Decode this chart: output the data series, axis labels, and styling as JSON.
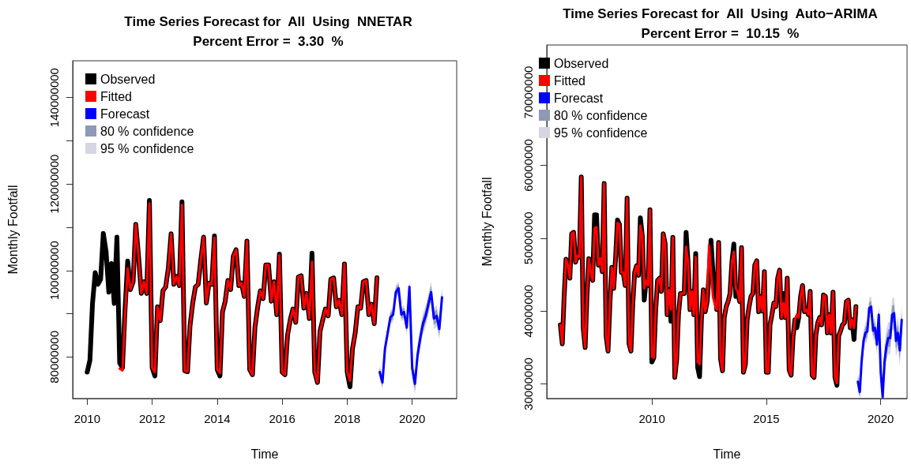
{
  "chart_data": [
    {
      "type": "line",
      "title": "Time Series Forecast for  All  Using  NNETAR",
      "subtitle": "Percent Error =  3.30  %",
      "xlabel": "Time",
      "ylabel": "Monthly Footfall",
      "x": [
        "2010-01",
        "2010-02",
        "2010-03",
        "2010-04",
        "2010-05",
        "2010-06",
        "2010-07",
        "2010-08",
        "2010-09",
        "2010-10",
        "2010-11",
        "2010-12",
        "2011-01",
        "2011-02",
        "2011-03",
        "2011-04",
        "2011-05",
        "2011-06",
        "2011-07",
        "2011-08",
        "2011-09",
        "2011-10",
        "2011-11",
        "2011-12",
        "2012-01",
        "2012-02",
        "2012-03",
        "2012-04",
        "2012-05",
        "2012-06",
        "2012-07",
        "2012-08",
        "2012-09",
        "2012-10",
        "2012-11",
        "2012-12",
        "2013-01",
        "2013-02",
        "2013-03",
        "2013-04",
        "2013-05",
        "2013-06",
        "2013-07",
        "2013-08",
        "2013-09",
        "2013-10",
        "2013-11",
        "2013-12",
        "2014-01",
        "2014-02",
        "2014-03",
        "2014-04",
        "2014-05",
        "2014-06",
        "2014-07",
        "2014-08",
        "2014-09",
        "2014-10",
        "2014-11",
        "2014-12",
        "2015-01",
        "2015-02",
        "2015-03",
        "2015-04",
        "2015-05",
        "2015-06",
        "2015-07",
        "2015-08",
        "2015-09",
        "2015-10",
        "2015-11",
        "2015-12",
        "2016-01",
        "2016-02",
        "2016-03",
        "2016-04",
        "2016-05",
        "2016-06",
        "2016-07",
        "2016-08",
        "2016-09",
        "2016-10",
        "2016-11",
        "2016-12",
        "2017-01",
        "2017-02",
        "2017-03",
        "2017-04",
        "2017-05",
        "2017-06",
        "2017-07",
        "2017-08",
        "2017-09",
        "2017-10",
        "2017-11",
        "2017-12",
        "2018-01",
        "2018-02",
        "2018-03",
        "2018-04",
        "2018-05",
        "2018-06",
        "2018-07",
        "2018-08",
        "2018-09",
        "2018-10",
        "2018-11",
        "2018-12"
      ],
      "series": [
        {
          "name": "Observed",
          "color": "#000000",
          "values": [
            76500000.0,
            79300000.0,
            92200000.0,
            99500000.0,
            96800000.0,
            98000000.0,
            108600000.0,
            104400000.0,
            95000000.0,
            101600000.0,
            92400000.0,
            107700000.0,
            78600000.0,
            77500000.0,
            90400000.0,
            102200000.0,
            95600000.0,
            97400000.0,
            110700000.0,
            103300000.0,
            94700000.0,
            97400000.0,
            94700000.0,
            116200000.0,
            77500000.0,
            75600000.0,
            91600000.0,
            88400000.0,
            95300000.0,
            96200000.0,
            100600000.0,
            108500000.0,
            96800000.0,
            98600000.0,
            96500000.0,
            115900000.0,
            76800000.0,
            76600000.0,
            87100000.0,
            92500000.0,
            96200000.0,
            96800000.0,
            102500000.0,
            107700000.0,
            92500000.0,
            97100000.0,
            96800000.0,
            108000000.0,
            77100000.0,
            75600000.0,
            90400000.0,
            92900000.0,
            97700000.0,
            95600000.0,
            103300000.0,
            104800000.0,
            96500000.0,
            97100000.0,
            94000000.0,
            106800000.0,
            77100000.0,
            75900000.0,
            86800000.0,
            91600000.0,
            95300000.0,
            93500000.0,
            101300000.0,
            101300000.0,
            92900000.0,
            97400000.0,
            89800000.0,
            103800000.0,
            76500000.0,
            75900000.0,
            85000000.0,
            88600000.0,
            91100000.0,
            88000000.0,
            98500000.0,
            98800000.0,
            91300000.0,
            94700000.0,
            88900000.0,
            104000000.0,
            76500000.0,
            74100000.0,
            85900000.0,
            88600000.0,
            91100000.0,
            89500000.0,
            98000000.0,
            98300000.0,
            91600000.0,
            93100000.0,
            89800000.0,
            101500000.0,
            76500000.0,
            73100000.0,
            81900000.0,
            85600000.0,
            91600000.0,
            91300000.0,
            97400000.0,
            97700000.0,
            89800000.0,
            92200000.0,
            87700000.0,
            98300000.0
          ]
        },
        {
          "name": "Fitted",
          "color": "#ff0000",
          "values": [
            null,
            null,
            null,
            null,
            null,
            null,
            null,
            null,
            null,
            null,
            null,
            null,
            77300000.0,
            76900000.0,
            89000000.0,
            100500000.0,
            95600000.0,
            97400000.0,
            110700000.0,
            103300000.0,
            94700000.0,
            97400000.0,
            94700000.0,
            115500000.0,
            77500000.0,
            76500000.0,
            91600000.0,
            88400000.0,
            95300000.0,
            96200000.0,
            100600000.0,
            108500000.0,
            96800000.0,
            98600000.0,
            96500000.0,
            115200000.0,
            76800000.0,
            76600000.0,
            87100000.0,
            92500000.0,
            96200000.0,
            96800000.0,
            102500000.0,
            107700000.0,
            92500000.0,
            97100000.0,
            96800000.0,
            107600000.0,
            77100000.0,
            76300000.0,
            90400000.0,
            92900000.0,
            97700000.0,
            95600000.0,
            103300000.0,
            104800000.0,
            96500000.0,
            97100000.0,
            94000000.0,
            106800000.0,
            77100000.0,
            75900000.0,
            86800000.0,
            91600000.0,
            95300000.0,
            93500000.0,
            101300000.0,
            101300000.0,
            92900000.0,
            97400000.0,
            89800000.0,
            103500000.0,
            76500000.0,
            75900000.0,
            85000000.0,
            88600000.0,
            91100000.0,
            88000000.0,
            98500000.0,
            98800000.0,
            91300000.0,
            94700000.0,
            88900000.0,
            102000000.0,
            76500000.0,
            74100000.0,
            85900000.0,
            88600000.0,
            91100000.0,
            89500000.0,
            98000000.0,
            98300000.0,
            91600000.0,
            93100000.0,
            89800000.0,
            101500000.0,
            76500000.0,
            74500000.0,
            81900000.0,
            85600000.0,
            91600000.0,
            91300000.0,
            97400000.0,
            97700000.0,
            89800000.0,
            92200000.0,
            87700000.0,
            98300000.0
          ]
        },
        {
          "name": "Forecast",
          "color": "#0000ff",
          "x": [
            "2019-01",
            "2019-02",
            "2019-03",
            "2019-04",
            "2019-05",
            "2019-06",
            "2019-07",
            "2019-08",
            "2019-09",
            "2019-10",
            "2019-11",
            "2019-12",
            "2020-01",
            "2020-02",
            "2020-03",
            "2020-04",
            "2020-05",
            "2020-06",
            "2020-07",
            "2020-08",
            "2020-09",
            "2020-10",
            "2020-11",
            "2020-12"
          ],
          "values": [
            76500000.0,
            74100000.0,
            81900000.0,
            85600000.0,
            89200000.0,
            89800000.0,
            95000000.0,
            95900000.0,
            89800000.0,
            90400000.0,
            86800000.0,
            96200000.0,
            77400000.0,
            73800000.0,
            80400000.0,
            84400000.0,
            87700000.0,
            89500000.0,
            92200000.0,
            95000000.0,
            88900000.0,
            89500000.0,
            86500000.0,
            93800000.0
          ]
        },
        {
          "name": "80 % confidence",
          "color": "#8e99b8",
          "x": [
            "2019-01",
            "2019-02",
            "2019-03",
            "2019-04",
            "2019-05",
            "2019-06",
            "2019-07",
            "2019-08",
            "2019-09",
            "2019-10",
            "2019-11",
            "2019-12",
            "2020-01",
            "2020-02",
            "2020-03",
            "2020-04",
            "2020-05",
            "2020-06",
            "2020-07",
            "2020-08",
            "2020-09",
            "2020-10",
            "2020-11",
            "2020-12"
          ],
          "values": [
            null,
            null,
            null,
            null,
            null,
            null,
            null,
            null,
            null,
            null,
            null,
            null,
            null,
            null,
            null,
            null,
            null,
            null,
            null,
            null,
            null,
            null,
            null,
            null
          ],
          "lower": [
            75500000.0,
            73100000.0,
            80900000.0,
            84600000.0,
            88200000.0,
            88800000.0,
            94000000.0,
            94900000.0,
            88800000.0,
            89400000.0,
            85800000.0,
            95200000.0,
            75900000.0,
            72300000.0,
            78900000.0,
            82900000.0,
            86200000.0,
            88000000.0,
            90700000.0,
            93500000.0,
            87400000.0,
            88000000.0,
            85000000.0,
            92300000.0
          ],
          "upper": [
            77500000.0,
            75100000.0,
            82900000.0,
            86600000.0,
            90200000.0,
            90800000.0,
            96000000.0,
            96900000.0,
            90800000.0,
            91400000.0,
            87800000.0,
            97200000.0,
            78900000.0,
            75300000.0,
            81900000.0,
            85900000.0,
            89200000.0,
            91000000.0,
            93700000.0,
            96500000.0,
            90400000.0,
            91000000.0,
            88000000.0,
            95300000.0
          ]
        },
        {
          "name": "95 % confidence",
          "color": "#d4d7e2",
          "x": [
            "2019-01",
            "2019-02",
            "2019-03",
            "2019-04",
            "2019-05",
            "2019-06",
            "2019-07",
            "2019-08",
            "2019-09",
            "2019-10",
            "2019-11",
            "2019-12",
            "2020-01",
            "2020-02",
            "2020-03",
            "2020-04",
            "2020-05",
            "2020-06",
            "2020-07",
            "2020-08",
            "2020-09",
            "2020-10",
            "2020-11",
            "2020-12"
          ],
          "values": [
            null,
            null,
            null,
            null,
            null,
            null,
            null,
            null,
            null,
            null,
            null,
            null,
            null,
            null,
            null,
            null,
            null,
            null,
            null,
            null,
            null,
            null,
            null,
            null
          ],
          "lower": [
            74900000.0,
            72500000.0,
            80300000.0,
            84000000.0,
            87600000.0,
            88200000.0,
            93400000.0,
            94300000.0,
            88200000.0,
            88800000.0,
            85200000.0,
            94600000.0,
            74900000.0,
            71300000.0,
            77900000.0,
            81900000.0,
            85200000.0,
            87000000.0,
            89700000.0,
            92500000.0,
            86400000.0,
            87000000.0,
            84000000.0,
            91300000.0
          ],
          "upper": [
            78100000.0,
            75700000.0,
            83500000.0,
            87200000.0,
            90800000.0,
            91400000.0,
            96600000.0,
            97500000.0,
            91400000.0,
            92000000.0,
            88400000.0,
            97800000.0,
            79900000.0,
            76300000.0,
            82900000.0,
            86900000.0,
            90200000.0,
            92000000.0,
            94700000.0,
            97500000.0,
            91400000.0,
            92000000.0,
            89000000.0,
            96300000.0
          ]
        }
      ],
      "xlim": [
        "2009-07-22",
        "2021-05-15"
      ],
      "xticks": [
        "2010",
        "2012",
        "2014",
        "2016",
        "2018",
        "2020"
      ],
      "ylim": [
        70400000.0,
        148500000.0
      ],
      "yticks": [
        80000000,
        {
          "value": 90000000,
          "label": null
        },
        100000000,
        {
          "value": 110000000,
          "label": null
        },
        120000000,
        {
          "value": 130000000,
          "label": null
        },
        140000000
      ],
      "grid": false,
      "legend": "top left",
      "marker": "none",
      "line_style": "solid"
    },
    {
      "type": "line",
      "title": "Time Series Forecast for  All  Using  Auto−ARIMA",
      "subtitle": "Percent Error =  10.15  %",
      "xlabel": "Time",
      "ylabel": "Monthly Footfall",
      "x": [
        "2006-01",
        "2006-02",
        "2006-03",
        "2006-04",
        "2006-05",
        "2006-06",
        "2006-07",
        "2006-08",
        "2006-09",
        "2006-10",
        "2006-11",
        "2006-12",
        "2007-01",
        "2007-02",
        "2007-03",
        "2007-04",
        "2007-05",
        "2007-06",
        "2007-07",
        "2007-08",
        "2007-09",
        "2007-10",
        "2007-11",
        "2007-12",
        "2008-01",
        "2008-02",
        "2008-03",
        "2008-04",
        "2008-05",
        "2008-06",
        "2008-07",
        "2008-08",
        "2008-09",
        "2008-10",
        "2008-11",
        "2008-12",
        "2009-01",
        "2009-02",
        "2009-03",
        "2009-04",
        "2009-05",
        "2009-06",
        "2009-07",
        "2009-08",
        "2009-09",
        "2009-10",
        "2009-11",
        "2009-12",
        "2010-01",
        "2010-02",
        "2010-03",
        "2010-04",
        "2010-05",
        "2010-06",
        "2010-07",
        "2010-08",
        "2010-09",
        "2010-10",
        "2010-11",
        "2010-12",
        "2011-01",
        "2011-02",
        "2011-03",
        "2011-04",
        "2011-05",
        "2011-06",
        "2011-07",
        "2011-08",
        "2011-09",
        "2011-10",
        "2011-11",
        "2011-12",
        "2012-01",
        "2012-02",
        "2012-03",
        "2012-04",
        "2012-05",
        "2012-06",
        "2012-07",
        "2012-08",
        "2012-09",
        "2012-10",
        "2012-11",
        "2012-12",
        "2013-01",
        "2013-02",
        "2013-03",
        "2013-04",
        "2013-05",
        "2013-06",
        "2013-07",
        "2013-08",
        "2013-09",
        "2013-10",
        "2013-11",
        "2013-12",
        "2014-01",
        "2014-02",
        "2014-03",
        "2014-04",
        "2014-05",
        "2014-06",
        "2014-07",
        "2014-08",
        "2014-09",
        "2014-10",
        "2014-11",
        "2014-12",
        "2015-01",
        "2015-02",
        "2015-03",
        "2015-04",
        "2015-05",
        "2015-06",
        "2015-07",
        "2015-08",
        "2015-09",
        "2015-10",
        "2015-11",
        "2015-12",
        "2016-01",
        "2016-02",
        "2016-03",
        "2016-04",
        "2016-05",
        "2016-06",
        "2016-07",
        "2016-08",
        "2016-09",
        "2016-10",
        "2016-11",
        "2016-12",
        "2017-01",
        "2017-02",
        "2017-03",
        "2017-04",
        "2017-05",
        "2017-06",
        "2017-07",
        "2017-08",
        "2017-09",
        "2017-10",
        "2017-11",
        "2017-12",
        "2018-01",
        "2018-02",
        "2018-03",
        "2018-04",
        "2018-05",
        "2018-06",
        "2018-07",
        "2018-08",
        "2018-09",
        "2018-10",
        "2018-11",
        "2018-12"
      ],
      "series": [
        {
          "name": "Observed",
          "color": "#000000",
          "values": [
            38100000.0,
            35500000.0,
            41700000.0,
            47100000.0,
            46300000.0,
            44500000.0,
            50600000.0,
            50800000.0,
            46700000.0,
            47600000.0,
            47400000.0,
            58400000.0,
            37700000.0,
            35000000.0,
            42000000.0,
            47200000.0,
            45300000.0,
            44200000.0,
            53200000.0,
            53200000.0,
            46300000.0,
            47200000.0,
            45400000.0,
            57500000.0,
            36600000.0,
            34500000.0,
            40900000.0,
            46000000.0,
            43100000.0,
            47400000.0,
            52500000.0,
            51900000.0,
            45300000.0,
            45300000.0,
            43500000.0,
            55500000.0,
            35500000.0,
            34500000.0,
            40900000.0,
            45300000.0,
            46200000.0,
            44900000.0,
            52800000.0,
            50300000.0,
            41500000.0,
            44200000.0,
            43500000.0,
            53900000.0,
            33000000.0,
            33600000.0,
            39900000.0,
            44200000.0,
            44500000.0,
            42700000.0,
            50600000.0,
            49200000.0,
            39500000.0,
            42900000.0,
            38600000.0,
            50100000.0,
            30900000.0,
            33400000.0,
            39500000.0,
            42400000.0,
            42400000.0,
            42400000.0,
            50800000.0,
            46700000.0,
            40200000.0,
            42700000.0,
            39500000.0,
            47900000.0,
            32300000.0,
            31000000.0,
            38800000.0,
            42900000.0,
            39900000.0,
            41300000.0,
            45000000.0,
            49700000.0,
            45300000.0,
            43800000.0,
            40200000.0,
            49400000.0,
            33400000.0,
            31800000.0,
            39100000.0,
            40600000.0,
            41300000.0,
            42400000.0,
            46700000.0,
            49200000.0,
            42000000.0,
            42700000.0,
            41300000.0,
            48700000.0,
            31600000.0,
            32700000.0,
            38800000.0,
            40600000.0,
            42000000.0,
            42400000.0,
            46300000.0,
            46900000.0,
            39900000.0,
            42000000.0,
            40000000.0,
            45400000.0,
            31600000.0,
            31600000.0,
            38100000.0,
            39500000.0,
            41100000.0,
            40600000.0,
            44500000.0,
            45600000.0,
            39100000.0,
            42400000.0,
            39100000.0,
            44500000.0,
            31900000.0,
            31200000.0,
            36300000.0,
            38800000.0,
            37700000.0,
            39100000.0,
            42000000.0,
            43500000.0,
            39900000.0,
            40200000.0,
            39500000.0,
            42700000.0,
            31200000.0,
            30900000.0,
            36600000.0,
            38400000.0,
            39100000.0,
            38100000.0,
            42200000.0,
            42000000.0,
            37000000.0,
            39500000.0,
            37000000.0,
            42600000.0,
            30900000.0,
            29800000.0,
            36600000.0,
            37300000.0,
            38100000.0,
            38400000.0,
            41300000.0,
            41500000.0,
            37700000.0,
            38800000.0,
            36100000.0,
            40600000.0
          ]
        },
        {
          "name": "Fitted",
          "color": "#ff0000",
          "values": [
            38100000.0,
            35500000.0,
            41700000.0,
            47100000.0,
            46300000.0,
            44500000.0,
            50600000.0,
            50800000.0,
            46700000.0,
            47600000.0,
            47400000.0,
            58400000.0,
            37700000.0,
            35000000.0,
            42000000.0,
            47200000.0,
            45300000.0,
            44200000.0,
            51400000.0,
            51500000.0,
            46300000.0,
            47200000.0,
            45400000.0,
            57500000.0,
            36600000.0,
            34500000.0,
            40900000.0,
            46000000.0,
            43100000.0,
            47400000.0,
            52100000.0,
            51900000.0,
            45300000.0,
            45300000.0,
            43500000.0,
            55500000.0,
            35500000.0,
            34500000.0,
            40900000.0,
            45300000.0,
            46200000.0,
            44900000.0,
            51700000.0,
            50300000.0,
            43100000.0,
            44200000.0,
            43500000.0,
            53900000.0,
            33700000.0,
            33600000.0,
            39900000.0,
            44200000.0,
            44500000.0,
            42700000.0,
            50600000.0,
            49200000.0,
            39500000.0,
            42900000.0,
            40200000.0,
            50100000.0,
            30900000.0,
            33400000.0,
            39500000.0,
            42400000.0,
            42400000.0,
            42400000.0,
            48800000.0,
            46700000.0,
            40200000.0,
            42700000.0,
            39500000.0,
            47400000.0,
            33000000.0,
            32700000.0,
            38800000.0,
            42900000.0,
            39900000.0,
            41300000.0,
            49000000.0,
            45500000.0,
            42000000.0,
            40900000.0,
            40200000.0,
            49400000.0,
            33400000.0,
            31800000.0,
            39100000.0,
            40600000.0,
            41300000.0,
            42400000.0,
            46700000.0,
            48100000.0,
            43100000.0,
            42700000.0,
            41300000.0,
            48700000.0,
            31600000.0,
            32700000.0,
            38800000.0,
            40600000.0,
            42000000.0,
            42400000.0,
            46300000.0,
            46900000.0,
            39900000.0,
            42000000.0,
            40000000.0,
            45400000.0,
            31600000.0,
            31600000.0,
            38100000.0,
            39500000.0,
            41100000.0,
            40600000.0,
            44500000.0,
            45600000.0,
            39100000.0,
            41100000.0,
            39100000.0,
            44500000.0,
            31900000.0,
            31200000.0,
            36300000.0,
            38800000.0,
            39500000.0,
            39100000.0,
            42000000.0,
            43500000.0,
            39900000.0,
            40200000.0,
            39500000.0,
            42700000.0,
            31200000.0,
            30900000.0,
            36600000.0,
            38400000.0,
            39100000.0,
            38100000.0,
            42200000.0,
            42000000.0,
            37000000.0,
            39500000.0,
            37000000.0,
            42600000.0,
            30900000.0,
            30100000.0,
            36600000.0,
            37300000.0,
            38100000.0,
            38400000.0,
            41300000.0,
            41500000.0,
            37700000.0,
            38800000.0,
            37700000.0,
            40600000.0
          ]
        },
        {
          "name": "Forecast",
          "color": "#0000ff",
          "x": [
            "2019-01",
            "2019-02",
            "2019-03",
            "2019-04",
            "2019-05",
            "2019-06",
            "2019-07",
            "2019-08",
            "2019-09",
            "2019-10",
            "2019-11",
            "2019-12",
            "2020-01",
            "2020-02",
            "2020-03",
            "2020-04",
            "2020-05",
            "2020-06",
            "2020-07",
            "2020-08",
            "2020-09",
            "2020-10",
            "2020-11",
            "2020-12"
          ],
          "values": [
            30300000.0,
            28900000.0,
            33000000.0,
            35900000.0,
            37000000.0,
            37200000.0,
            40400000.0,
            40600000.0,
            37300000.0,
            37700000.0,
            35400000.0,
            39500000.0,
            31600000.0,
            28200000.0,
            33000000.0,
            35200000.0,
            36300000.0,
            36300000.0,
            39500000.0,
            39700000.0,
            35900000.0,
            37000000.0,
            34600000.0,
            38800000.0
          ]
        },
        {
          "name": "80 % confidence",
          "color": "#8e99b8",
          "x": [
            "2019-01",
            "2019-02",
            "2019-03",
            "2019-04",
            "2019-05",
            "2019-06",
            "2019-07",
            "2019-08",
            "2019-09",
            "2019-10",
            "2019-11",
            "2019-12",
            "2020-01",
            "2020-02",
            "2020-03",
            "2020-04",
            "2020-05",
            "2020-06",
            "2020-07",
            "2020-08",
            "2020-09",
            "2020-10",
            "2020-11",
            "2020-12"
          ],
          "values": [
            null,
            null,
            null,
            null,
            null,
            null,
            null,
            null,
            null,
            null,
            null,
            null,
            null,
            null,
            null,
            null,
            null,
            null,
            null,
            null,
            null,
            null,
            null,
            null
          ],
          "lower": [
            29500000.0,
            28100000.0,
            32200000.0,
            35100000.0,
            36200000.0,
            36400000.0,
            39600000.0,
            39800000.0,
            36500000.0,
            36900000.0,
            34600000.0,
            38700000.0,
            30400000.0,
            28100000.0,
            31800000.0,
            34000000.0,
            35100000.0,
            35100000.0,
            38300000.0,
            38500000.0,
            34700000.0,
            35800000.0,
            33400000.0,
            37600000.0
          ],
          "upper": [
            31100000.0,
            29700000.0,
            33800000.0,
            36700000.0,
            37800000.0,
            38000000.0,
            41200000.0,
            41400000.0,
            38100000.0,
            38500000.0,
            36200000.0,
            40300000.0,
            32800000.0,
            29400000.0,
            34200000.0,
            36400000.0,
            37500000.0,
            37500000.0,
            40700000.0,
            40900000.0,
            37100000.0,
            38200000.0,
            35800000.0,
            40000000.0
          ]
        },
        {
          "name": "95 % confidence",
          "color": "#d4d7e2",
          "x": [
            "2019-01",
            "2019-02",
            "2019-03",
            "2019-04",
            "2019-05",
            "2019-06",
            "2019-07",
            "2019-08",
            "2019-09",
            "2019-10",
            "2019-11",
            "2019-12",
            "2020-01",
            "2020-02",
            "2020-03",
            "2020-04",
            "2020-05",
            "2020-06",
            "2020-07",
            "2020-08",
            "2020-09",
            "2020-10",
            "2020-11",
            "2020-12"
          ],
          "values": [
            null,
            null,
            null,
            null,
            null,
            null,
            null,
            null,
            null,
            null,
            null,
            null,
            null,
            null,
            null,
            null,
            null,
            null,
            null,
            null,
            null,
            null,
            null,
            null
          ],
          "lower": [
            28900000.0,
            28100000.0,
            31600000.0,
            34500000.0,
            35600000.0,
            35800000.0,
            39000000.0,
            39200000.0,
            35900000.0,
            36300000.0,
            34000000.0,
            38100000.0,
            29400000.0,
            28100000.0,
            30800000.0,
            33000000.0,
            34100000.0,
            34100000.0,
            37300000.0,
            37500000.0,
            33700000.0,
            34800000.0,
            32400000.0,
            36600000.0
          ],
          "upper": [
            31700000.0,
            30300000.0,
            34400000.0,
            37300000.0,
            38400000.0,
            38600000.0,
            41800000.0,
            42000000.0,
            38700000.0,
            39100000.0,
            36800000.0,
            40900000.0,
            33800000.0,
            30400000.0,
            35200000.0,
            37500000.0,
            38500000.0,
            38500000.0,
            41700000.0,
            41900000.0,
            38100000.0,
            39200000.0,
            36800000.0,
            41000000.0
          ]
        }
      ],
      "xlim": [
        "2005-05-29",
        "2021-02-24"
      ],
      "xticks": [
        "2010",
        "2015",
        "2020"
      ],
      "ylim": [
        28000000,
        76500000
      ],
      "yticks": [
        30000000,
        40000000,
        50000000,
        60000000,
        70000000
      ],
      "grid": false,
      "legend": "top left",
      "marker": "none",
      "line_style": "solid"
    }
  ]
}
